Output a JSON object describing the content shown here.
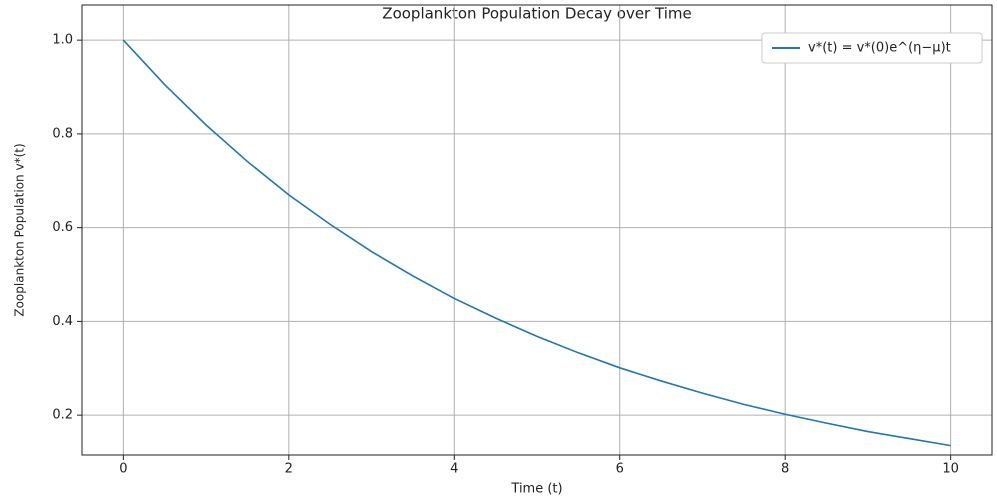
{
  "chart_data": {
    "type": "line",
    "title": "Zooplankton Population Decay over Time",
    "xlabel": "Time (t)",
    "ylabel": "Zooplankton Population v*(t)",
    "x": [
      0,
      0.5,
      1,
      1.5,
      2,
      2.5,
      3,
      3.5,
      4,
      4.5,
      5,
      5.5,
      6,
      6.5,
      7,
      7.5,
      8,
      8.5,
      9,
      9.5,
      10
    ],
    "series": [
      {
        "name": "v*(t) = v*(0)e^(η−μ)t",
        "color": "#1f77b4",
        "values": [
          1.0,
          0.905,
          0.819,
          0.741,
          0.67,
          0.607,
          0.549,
          0.497,
          0.449,
          0.407,
          0.368,
          0.333,
          0.301,
          0.273,
          0.247,
          0.223,
          0.202,
          0.183,
          0.165,
          0.15,
          0.135
        ]
      }
    ],
    "xlim": [
      -0.5,
      10.5
    ],
    "ylim": [
      0.115,
      1.075
    ],
    "xticks": [
      0,
      2,
      4,
      6,
      8,
      10
    ],
    "yticks": [
      0.2,
      0.4,
      0.6,
      0.8,
      {
        "value": 1.0,
        "label": "1.0"
      }
    ],
    "grid": true,
    "legend": "upper right"
  }
}
